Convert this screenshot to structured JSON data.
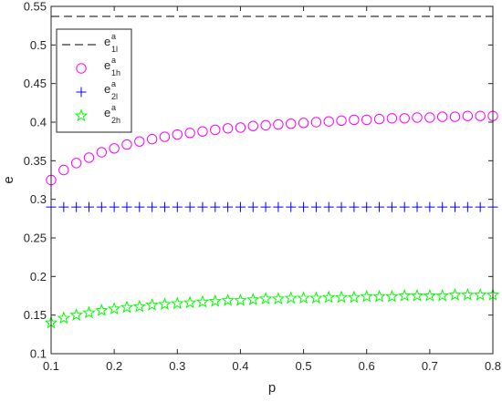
{
  "chart_data": {
    "type": "scatter",
    "title": "",
    "xlabel": "p",
    "ylabel": "e",
    "xlim": [
      0.1,
      0.8
    ],
    "ylim": [
      0.1,
      0.55
    ],
    "xticks": [
      "0.1",
      "0.2",
      "0.3",
      "0.4",
      "0.5",
      "0.6",
      "0.7",
      "0.8"
    ],
    "yticks": [
      "0.1",
      "0.15",
      "0.2",
      "0.25",
      "0.3",
      "0.35",
      "0.4",
      "0.45",
      "0.5",
      "0.55"
    ],
    "grid": false,
    "legend_position": "top-left",
    "x": [
      0.1,
      0.12,
      0.14,
      0.16,
      0.18,
      0.2,
      0.22,
      0.24,
      0.26,
      0.28,
      0.3,
      0.32,
      0.34,
      0.36,
      0.38,
      0.4,
      0.42,
      0.44,
      0.46,
      0.48,
      0.5,
      0.52,
      0.54,
      0.56,
      0.58,
      0.6,
      0.62,
      0.64,
      0.66,
      0.68,
      0.7,
      0.72,
      0.74,
      0.76,
      0.78,
      0.8
    ],
    "series": [
      {
        "name": "e1l^a",
        "legend_main": "e",
        "legend_sup": "a",
        "legend_sub": "1l",
        "style": "dash",
        "color": "#000000",
        "values": [
          0.537,
          0.537
        ]
      },
      {
        "name": "e1h^a",
        "legend_main": "e",
        "legend_sup": "a",
        "legend_sub": "1h",
        "style": "circle",
        "color": "#ff00ff",
        "values": [
          0.325,
          0.338,
          0.347,
          0.354,
          0.361,
          0.366,
          0.371,
          0.375,
          0.378,
          0.381,
          0.384,
          0.386,
          0.388,
          0.39,
          0.392,
          0.393,
          0.395,
          0.396,
          0.397,
          0.398,
          0.399,
          0.4,
          0.401,
          0.402,
          0.403,
          0.403,
          0.404,
          0.405,
          0.405,
          0.406,
          0.406,
          0.407,
          0.407,
          0.408,
          0.408,
          0.408
        ]
      },
      {
        "name": "e2l^a",
        "legend_main": "e",
        "legend_sup": "a",
        "legend_sub": "2l",
        "style": "plus",
        "color": "#0000ff",
        "values": [
          0.29,
          0.29,
          0.29,
          0.29,
          0.29,
          0.29,
          0.29,
          0.29,
          0.29,
          0.29,
          0.29,
          0.29,
          0.29,
          0.29,
          0.29,
          0.29,
          0.29,
          0.29,
          0.29,
          0.29,
          0.29,
          0.29,
          0.29,
          0.29,
          0.29,
          0.29,
          0.29,
          0.29,
          0.29,
          0.29,
          0.29,
          0.29,
          0.29,
          0.29,
          0.29,
          0.29
        ]
      },
      {
        "name": "e2h^a",
        "legend_main": "e",
        "legend_sup": "a",
        "legend_sub": "2h",
        "style": "star",
        "color": "#00ff00",
        "values": [
          0.14,
          0.146,
          0.15,
          0.153,
          0.156,
          0.158,
          0.16,
          0.161,
          0.163,
          0.164,
          0.165,
          0.166,
          0.167,
          0.168,
          0.169,
          0.169,
          0.17,
          0.171,
          0.171,
          0.172,
          0.172,
          0.172,
          0.173,
          0.173,
          0.173,
          0.174,
          0.174,
          0.174,
          0.175,
          0.175,
          0.175,
          0.175,
          0.176,
          0.176,
          0.176,
          0.176
        ]
      }
    ]
  }
}
